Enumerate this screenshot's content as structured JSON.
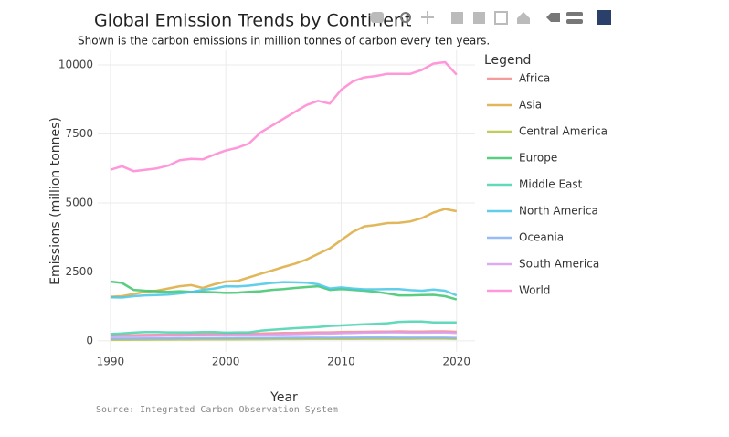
{
  "chart_data": {
    "type": "line",
    "title": "Global Emission Trends by Continent",
    "subtitle": "Shown is the carbon emissions in million tonnes of carbon every ten years.",
    "source": "Source: Integrated Carbon Observation System",
    "x_label": "Year",
    "y_label": "Emissions (million tonnes)",
    "legend_title": "Legend",
    "grid": true,
    "x": [
      1990,
      1991,
      1992,
      1993,
      1994,
      1995,
      1996,
      1997,
      1998,
      1999,
      2000,
      2001,
      2002,
      2003,
      2004,
      2005,
      2006,
      2007,
      2008,
      2009,
      2010,
      2011,
      2012,
      2013,
      2014,
      2015,
      2016,
      2017,
      2018,
      2019,
      2020
    ],
    "xlim": [
      1988.9,
      2021.6
    ],
    "xticks": [
      1990,
      2000,
      2010,
      2020
    ],
    "ylim": [
      -400,
      10530
    ],
    "yticks": [
      0,
      2500,
      5000,
      7500,
      10000
    ],
    "series": [
      {
        "name": "Africa",
        "color": "#f48a8a",
        "values": [
          200,
          205,
          210,
          215,
          220,
          225,
          230,
          235,
          240,
          245,
          250,
          255,
          260,
          265,
          275,
          285,
          290,
          300,
          310,
          310,
          320,
          325,
          330,
          335,
          340,
          345,
          340,
          340,
          345,
          345,
          330
        ]
      },
      {
        "name": "Asia",
        "color": "#ddaa40",
        "values": [
          1600,
          1620,
          1700,
          1780,
          1820,
          1900,
          1980,
          2020,
          1920,
          2050,
          2150,
          2170,
          2300,
          2430,
          2550,
          2680,
          2800,
          2950,
          3150,
          3350,
          3650,
          3950,
          4150,
          4200,
          4270,
          4280,
          4330,
          4450,
          4650,
          4780,
          4700
        ]
      },
      {
        "name": "Central America",
        "color": "#b5c43c",
        "values": [
          40,
          42,
          44,
          45,
          47,
          48,
          50,
          52,
          54,
          55,
          57,
          58,
          60,
          62,
          64,
          66,
          68,
          70,
          72,
          70,
          72,
          74,
          76,
          76,
          78,
          78,
          78,
          80,
          80,
          80,
          75
        ]
      },
      {
        "name": "Europe",
        "color": "#3cc46a",
        "values": [
          2150,
          2100,
          1850,
          1820,
          1800,
          1780,
          1800,
          1780,
          1780,
          1760,
          1740,
          1750,
          1780,
          1800,
          1850,
          1880,
          1920,
          1950,
          1980,
          1850,
          1880,
          1850,
          1820,
          1780,
          1720,
          1650,
          1650,
          1660,
          1670,
          1620,
          1500
        ]
      },
      {
        "name": "Middle East",
        "color": "#46d2ae",
        "values": [
          250,
          270,
          300,
          320,
          320,
          310,
          310,
          310,
          320,
          320,
          300,
          310,
          310,
          370,
          400,
          430,
          460,
          480,
          500,
          540,
          560,
          580,
          600,
          620,
          640,
          690,
          700,
          700,
          670,
          670,
          670
        ]
      },
      {
        "name": "North America",
        "color": "#46c6e6",
        "values": [
          1580,
          1570,
          1620,
          1650,
          1660,
          1680,
          1720,
          1770,
          1850,
          1900,
          1980,
          1970,
          2000,
          2050,
          2100,
          2130,
          2120,
          2110,
          2050,
          1900,
          1940,
          1900,
          1870,
          1870,
          1880,
          1880,
          1840,
          1820,
          1860,
          1820,
          1650
        ]
      },
      {
        "name": "Oceania",
        "color": "#86b0f6",
        "values": [
          80,
          82,
          84,
          86,
          88,
          90,
          92,
          94,
          96,
          98,
          100,
          102,
          104,
          106,
          108,
          110,
          112,
          114,
          116,
          114,
          116,
          118,
          120,
          120,
          120,
          118,
          118,
          118,
          118,
          116,
          110
        ]
      },
      {
        "name": "South America",
        "color": "#d79cf0",
        "values": [
          160,
          165,
          170,
          175,
          180,
          185,
          190,
          195,
          200,
          200,
          200,
          205,
          210,
          215,
          225,
          235,
          245,
          255,
          265,
          265,
          280,
          290,
          300,
          305,
          310,
          310,
          300,
          300,
          305,
          305,
          290
        ]
      },
      {
        "name": "World",
        "color": "#ff86d2",
        "values": [
          6200,
          6330,
          6150,
          6200,
          6250,
          6350,
          6550,
          6600,
          6580,
          6750,
          6900,
          7000,
          7150,
          7550,
          7800,
          8050,
          8300,
          8550,
          8700,
          8600,
          9100,
          9400,
          9550,
          9600,
          9680,
          9680,
          9680,
          9820,
          10050,
          10100,
          9650
        ]
      }
    ]
  }
}
